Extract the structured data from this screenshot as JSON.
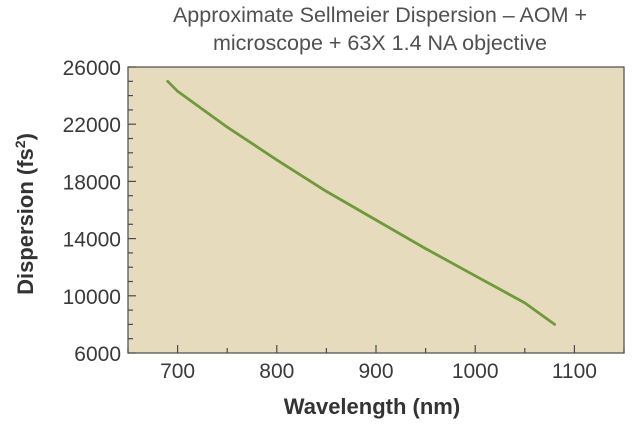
{
  "chart_data": {
    "type": "line",
    "title_line1": "Approximate Sellmeier Dispersion – AOM +",
    "title_line2": "microscope + 63X 1.4 NA objective",
    "xlabel": "Wavelength (nm)",
    "ylabel_main": "Dispersion (fs",
    "ylabel_sup": "2",
    "ylabel_end": ")",
    "xlim": [
      650,
      1150
    ],
    "ylim": [
      6000,
      26000
    ],
    "x_ticks": [
      700,
      800,
      900,
      1000,
      1100
    ],
    "y_ticks": [
      6000,
      10000,
      14000,
      18000,
      22000,
      26000
    ],
    "x_tick_labels": [
      "700",
      "800",
      "900",
      "1000",
      "1100"
    ],
    "y_tick_labels": [
      "6000",
      "10000",
      "14000",
      "18000",
      "22000",
      "26000"
    ],
    "grid": false,
    "plot_background": "#e6dcbd",
    "line_color": "#6f9a3c",
    "series": [
      {
        "x": [
          690,
          700,
          750,
          800,
          850,
          900,
          950,
          1000,
          1050,
          1080
        ],
        "y": [
          25000,
          24300,
          21800,
          19500,
          17300,
          15300,
          13300,
          11400,
          9500,
          8000
        ]
      }
    ]
  }
}
